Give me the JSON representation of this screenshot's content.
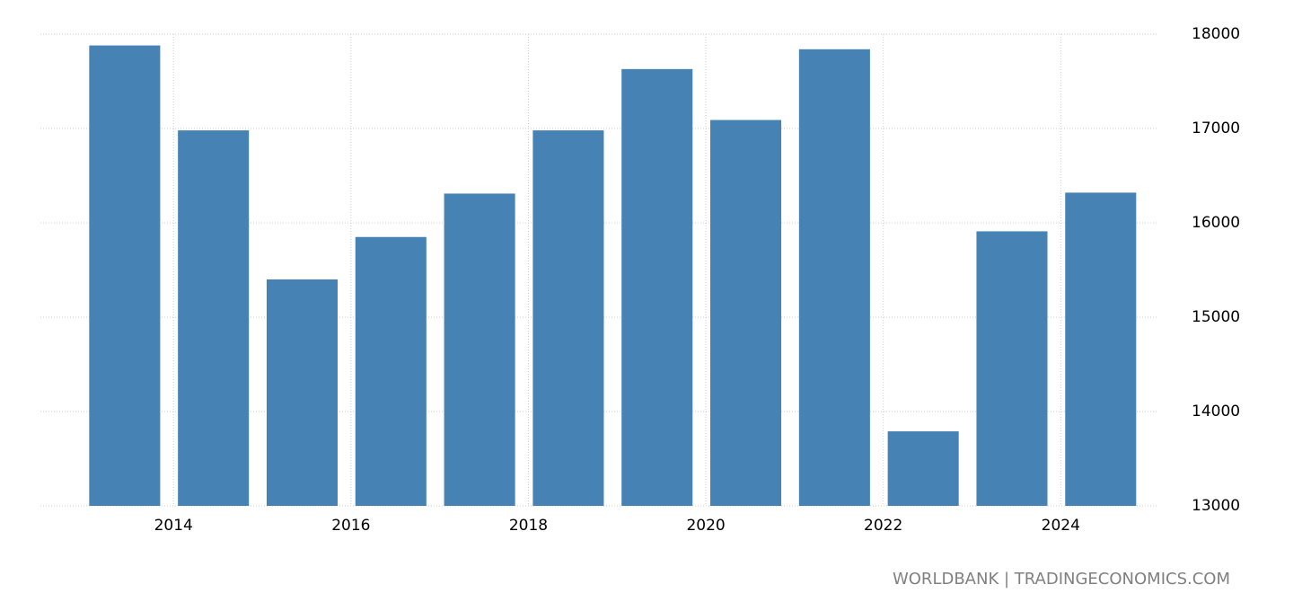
{
  "chart_data": {
    "type": "bar",
    "source": "WORLDBANK | TRADINGECONOMICS.COM",
    "x": [
      2013,
      2014,
      2015,
      2016,
      2017,
      2018,
      2019,
      2020,
      2021,
      2022,
      2023,
      2024
    ],
    "values": [
      17880,
      16980,
      15400,
      15850,
      16310,
      16980,
      17630,
      17090,
      17840,
      13790,
      15910,
      16320
    ],
    "color": "#4682b4",
    "xlim": [
      2012.5,
      2025.1
    ],
    "xticks": [
      2014,
      2016,
      2018,
      2020,
      2022,
      2024
    ],
    "ylim": [
      13000,
      18000
    ],
    "yticks": [
      13000,
      14000,
      15000,
      16000,
      17000,
      18000
    ],
    "grid": true
  }
}
